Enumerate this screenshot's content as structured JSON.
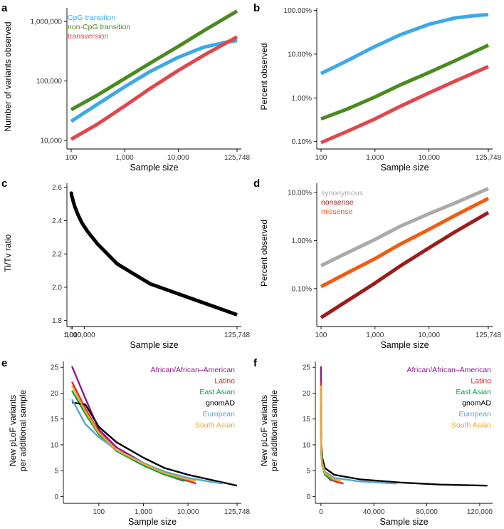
{
  "chart_data": [
    {
      "panel": "a",
      "type": "line",
      "scale": "log",
      "xlabel": "Sample size",
      "ylabel": "Number of variants observed",
      "xlim": [
        100,
        125748
      ],
      "ylim": [
        8500,
        1650000
      ],
      "xticks": [
        100,
        1000,
        10000,
        125748
      ],
      "xtick_labels": [
        "100",
        "1,000",
        "10,000",
        "125,748"
      ],
      "yticks": [
        10000,
        100000,
        1000000
      ],
      "ytick_labels": [
        "10,000",
        "100,000",
        "1,000,000"
      ],
      "legend": "top-left",
      "series": [
        {
          "name": "CpG transition",
          "color": "#3ea9e4",
          "x": [
            100,
            300,
            1000,
            3000,
            10000,
            30000,
            80000,
            125748
          ],
          "y": [
            21000,
            40000,
            80000,
            145000,
            250000,
            370000,
            450000,
            480000
          ]
        },
        {
          "name": "non-CpG transition",
          "color": "#4a8a20",
          "x": [
            100,
            300,
            1000,
            3000,
            10000,
            30000,
            125748
          ],
          "y": [
            33000,
            57000,
            110000,
            200000,
            380000,
            700000,
            1500000
          ]
        },
        {
          "name": "transversion",
          "color": "#e0474c",
          "x": [
            100,
            300,
            1000,
            3000,
            10000,
            30000,
            125748
          ],
          "y": [
            10500,
            18500,
            38000,
            75000,
            150000,
            270000,
            550000
          ]
        }
      ]
    },
    {
      "panel": "b",
      "type": "line",
      "scale": "log",
      "xlabel": "Sample size",
      "ylabel": "Percent observed",
      "xlim": [
        100,
        125748
      ],
      "ylim": [
        0.085,
        110
      ],
      "xticks": [
        100,
        1000,
        10000,
        125748
      ],
      "xtick_labels": [
        "100",
        "1,000",
        "10,000",
        "125,748"
      ],
      "yticks": [
        0.1,
        1,
        10,
        100
      ],
      "ytick_labels": [
        "0.10%",
        "1.00%",
        "10.00%",
        "100.00%"
      ],
      "series": [
        {
          "name": "CpG transition",
          "color": "#3ea9e4",
          "x": [
            100,
            300,
            1000,
            3000,
            10000,
            30000,
            80000,
            125748
          ],
          "y": [
            3.6,
            7.0,
            15.0,
            28.0,
            48.0,
            67.0,
            77.0,
            80.0
          ]
        },
        {
          "name": "non-CpG transition",
          "color": "#4a8a20",
          "x": [
            100,
            300,
            1000,
            3000,
            10000,
            30000,
            125748
          ],
          "y": [
            0.33,
            0.55,
            1.05,
            2.0,
            3.8,
            7.0,
            16.0
          ]
        },
        {
          "name": "transversion",
          "color": "#e0474c",
          "x": [
            100,
            300,
            1000,
            3000,
            10000,
            30000,
            125748
          ],
          "y": [
            0.095,
            0.17,
            0.33,
            0.65,
            1.3,
            2.4,
            5.2
          ]
        }
      ]
    },
    {
      "panel": "c",
      "type": "line",
      "scale": "linear-y",
      "xlabel": "Sample size",
      "ylabel": "Ti/Tv ratio",
      "xlim": [
        100,
        125748
      ],
      "ylim": [
        1.79,
        2.62
      ],
      "xticks": [
        100,
        1000,
        10000,
        125748
      ],
      "xtick_labels": [
        "100",
        "1,000",
        "10,000",
        "125,748"
      ],
      "yticks": [
        1.8,
        2.0,
        2.2,
        2.4,
        2.6
      ],
      "ytick_labels": [
        "1.8",
        "2.0",
        "2.2",
        "2.4",
        "2.6"
      ],
      "series": [
        {
          "name": "Ti/Tv",
          "color": "#000000",
          "x": [
            100,
            200,
            500,
            1000,
            2000,
            3000,
            5000,
            8000,
            12000,
            20000,
            35000,
            60000,
            125748
          ],
          "y": [
            2.56,
            2.565,
            2.55,
            2.535,
            2.505,
            2.48,
            2.44,
            2.39,
            2.34,
            2.26,
            2.14,
            2.02,
            1.835
          ]
        }
      ]
    },
    {
      "panel": "d",
      "type": "line",
      "scale": "log",
      "xlabel": "Sample size",
      "ylabel": "Percent observed",
      "xlim": [
        100,
        125748
      ],
      "ylim": [
        0.02,
        15
      ],
      "xticks": [
        100,
        1000,
        10000,
        125748
      ],
      "xtick_labels": [
        "100",
        "1,000",
        "10,000",
        "125,748"
      ],
      "yticks": [
        0.1,
        1,
        10
      ],
      "ytick_labels": [
        "0.10%",
        "1.00%",
        "10.00%"
      ],
      "legend": "top-left",
      "series": [
        {
          "name": "synonymous",
          "color": "#aaaaaa",
          "x": [
            100,
            300,
            1000,
            3000,
            10000,
            30000,
            125748
          ],
          "y": [
            0.3,
            0.55,
            1.05,
            2.0,
            3.6,
            6.0,
            12.0
          ]
        },
        {
          "name": "nonsense",
          "color": "#9b1c1c",
          "x": [
            100,
            300,
            1000,
            3000,
            10000,
            30000,
            125748
          ],
          "y": [
            0.025,
            0.055,
            0.13,
            0.3,
            0.7,
            1.5,
            3.8
          ]
        },
        {
          "name": "missense",
          "color": "#f05c12",
          "x": [
            100,
            300,
            1000,
            3000,
            10000,
            30000,
            125748
          ],
          "y": [
            0.11,
            0.21,
            0.42,
            0.85,
            1.7,
            3.3,
            7.5
          ]
        }
      ]
    },
    {
      "panel": "e",
      "type": "line",
      "scale": "log-x",
      "xlabel": "Sample size",
      "ylabel": [
        "New pLoF variants",
        "per additional sample"
      ],
      "xlim": [
        20,
        125748
      ],
      "ylim": [
        -0.5,
        26
      ],
      "xticks": [
        100,
        1000,
        10000,
        125748
      ],
      "xtick_labels": [
        "100",
        "1,000",
        "10,000",
        "125,748"
      ],
      "yticks": [
        0,
        5,
        10,
        15,
        20,
        25
      ],
      "ytick_labels": [
        "0",
        "5",
        "10",
        "15",
        "20",
        "25"
      ],
      "legend": "top-right",
      "series": [
        {
          "name": "African/African–American",
          "color": "#8b1a8b",
          "x": [
            25,
            50,
            100,
            250,
            1000,
            3000,
            8000
          ],
          "y": [
            25.2,
            19.0,
            13.0,
            9.5,
            6.5,
            4.3,
            3.0
          ]
        },
        {
          "name": "Latino",
          "color": "#e0242e",
          "x": [
            25,
            50,
            100,
            250,
            1000,
            3000,
            10000,
            13000,
            15000
          ],
          "y": [
            22.2,
            17.0,
            12.5,
            9.0,
            6.2,
            4.3,
            3.0,
            2.7,
            2.5
          ]
        },
        {
          "name": "East Asian",
          "color": "#119c4b",
          "x": [
            25,
            50,
            100,
            250,
            1000,
            3000,
            9000
          ],
          "y": [
            20.5,
            16.0,
            12.0,
            8.8,
            6.0,
            4.2,
            3.0
          ]
        },
        {
          "name": "gnomAD",
          "color": "#000000",
          "x": [
            25,
            50,
            100,
            250,
            1000,
            3000,
            10000,
            30000,
            125748
          ],
          "y": [
            18.2,
            17.8,
            13.5,
            10.5,
            7.5,
            5.5,
            4.2,
            3.3,
            2.1
          ]
        },
        {
          "name": "European",
          "color": "#5ba3cf",
          "x": [
            25,
            50,
            100,
            250,
            1000,
            3000,
            10000,
            30000,
            60000
          ],
          "y": [
            18.8,
            14.0,
            11.5,
            9.0,
            6.5,
            4.8,
            3.6,
            2.9,
            2.5
          ]
        },
        {
          "name": "South Asian",
          "color": "#f2a71b",
          "x": [
            25,
            50,
            100,
            250,
            1000,
            3000,
            10000,
            15000
          ],
          "y": [
            21.5,
            16.5,
            12.3,
            9.0,
            6.3,
            4.5,
            3.3,
            3.0
          ]
        }
      ]
    },
    {
      "panel": "f",
      "type": "line",
      "scale": "linear",
      "xlabel": "Sample size",
      "ylabel": [
        "New pLoF variants",
        "per additional sample"
      ],
      "xlim": [
        -1000,
        126500
      ],
      "ylim": [
        -0.5,
        26
      ],
      "xticks": [
        0,
        40000,
        80000,
        120000
      ],
      "xtick_labels": [
        "0",
        "40,000",
        "80,000",
        "120,000"
      ],
      "yticks": [
        0,
        5,
        10,
        15,
        20,
        25
      ],
      "ytick_labels": [
        "0",
        "5",
        "10",
        "15",
        "20",
        "25"
      ],
      "legend": "top-right",
      "series": [
        {
          "name": "African/African–American",
          "color": "#8b1a8b",
          "x": [
            25,
            100,
            300,
            1000,
            3000,
            8000
          ],
          "y": [
            25.2,
            13.0,
            8.5,
            6.5,
            4.3,
            3.0
          ]
        },
        {
          "name": "Latino",
          "color": "#e0242e",
          "x": [
            25,
            100,
            300,
            1000,
            3000,
            8000,
            12000,
            17000
          ],
          "y": [
            22.2,
            12.5,
            8.5,
            6.2,
            4.3,
            3.2,
            2.8,
            2.5
          ]
        },
        {
          "name": "East Asian",
          "color": "#119c4b",
          "x": [
            25,
            100,
            300,
            1000,
            3000,
            9000
          ],
          "y": [
            20.5,
            12.0,
            8.0,
            6.0,
            4.2,
            3.0
          ]
        },
        {
          "name": "gnomAD",
          "color": "#000000",
          "x": [
            25,
            100,
            300,
            1000,
            3000,
            10000,
            30000,
            60000,
            90000,
            125748
          ],
          "y": [
            18.2,
            13.5,
            10.0,
            7.5,
            5.5,
            4.2,
            3.3,
            2.7,
            2.3,
            2.1
          ]
        },
        {
          "name": "European",
          "color": "#5ba3cf",
          "x": [
            25,
            100,
            300,
            1000,
            3000,
            10000,
            30000,
            57000
          ],
          "y": [
            18.8,
            11.5,
            8.5,
            6.5,
            4.8,
            3.6,
            2.9,
            2.5
          ]
        },
        {
          "name": "South Asian",
          "color": "#f2a71b",
          "x": [
            25,
            100,
            300,
            1000,
            3000,
            10000,
            15000
          ],
          "y": [
            21.5,
            12.3,
            8.6,
            6.3,
            4.5,
            3.3,
            3.0
          ]
        }
      ]
    }
  ]
}
